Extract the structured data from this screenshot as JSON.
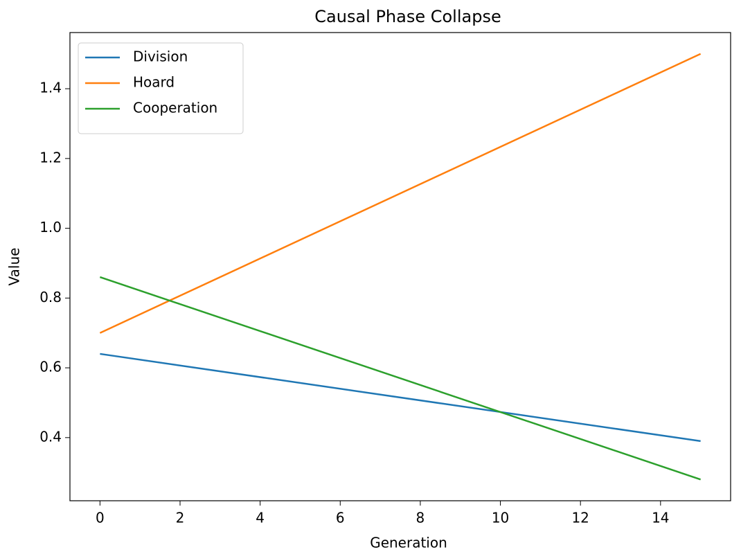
{
  "chart_data": {
    "type": "line",
    "title": "Causal Phase Collapse",
    "xlabel": "Generation",
    "ylabel": "Value",
    "x": [
      0,
      15
    ],
    "series": [
      {
        "name": "Division",
        "color": "#1f77b4",
        "values": [
          0.64,
          0.39
        ]
      },
      {
        "name": "Hoard",
        "color": "#ff7f0e",
        "values": [
          0.7,
          1.5
        ]
      },
      {
        "name": "Cooperation",
        "color": "#2ca02c",
        "values": [
          0.86,
          0.28
        ]
      }
    ],
    "xlim": [
      -0.75,
      15.75
    ],
    "xticks": [
      0,
      2,
      4,
      6,
      8,
      10,
      12,
      14
    ],
    "ylim": [
      0.219,
      1.561
    ],
    "yticks": [
      0.4,
      0.6,
      0.8,
      {
        "value": 1,
        "label": "1.0"
      },
      1.2,
      1.4
    ],
    "grid": false,
    "legend": "upper left"
  }
}
